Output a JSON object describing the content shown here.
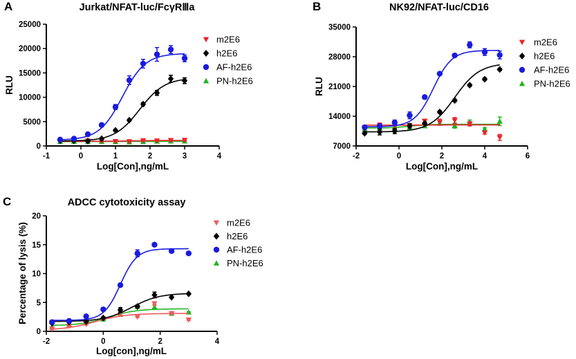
{
  "colors": {
    "m2E6": "#e8262a",
    "h2E6": "#000000",
    "AF-h2E6": "#1a1ae0",
    "PN-h2E6": "#22b422",
    "m2E6_panelC": "#f05a5a"
  },
  "chart_data": [
    {
      "panel": "A",
      "type": "scatter",
      "title": "Jurkat/NFAT-luc/FcγRⅢa",
      "xlabel": "Log[Con],ng/mL",
      "ylabel": "RLU",
      "xlim": [
        -1,
        4
      ],
      "xticks": [
        -1,
        0,
        1,
        2,
        3,
        4
      ],
      "ylim": [
        0,
        25000
      ],
      "yticks": [
        0,
        5000,
        10000,
        15000,
        20000,
        25000
      ],
      "legend": "top-right",
      "x": [
        -0.6,
        -0.2,
        0.2,
        0.6,
        1.0,
        1.4,
        1.8,
        2.2,
        2.6,
        3.0
      ],
      "series": [
        {
          "name": "m2E6",
          "marker": "triangle-down",
          "values": [
            1000,
            1000,
            1050,
            1000,
            950,
            900,
            1100,
            1050,
            1150,
            1200
          ],
          "errors": [
            100,
            100,
            100,
            100,
            100,
            100,
            150,
            100,
            150,
            150
          ],
          "fit": {
            "bottom": 950,
            "top": 1150,
            "logEC50": 1.5,
            "hill": 1
          }
        },
        {
          "name": "h2E6",
          "marker": "diamond",
          "values": [
            1100,
            1100,
            1000,
            1500,
            3200,
            5300,
            8600,
            10900,
            13800,
            13400
          ],
          "errors": [
            100,
            100,
            100,
            150,
            200,
            200,
            300,
            500,
            700,
            600
          ],
          "fit": {
            "bottom": 1000,
            "top": 14000,
            "logEC50": 1.7,
            "hill": 1.2
          }
        },
        {
          "name": "AF-h2E6",
          "marker": "circle",
          "values": [
            1300,
            1500,
            2400,
            4300,
            8000,
            13500,
            16900,
            18800,
            19800,
            18000
          ],
          "errors": [
            100,
            100,
            150,
            200,
            500,
            900,
            900,
            1400,
            800,
            700
          ],
          "fit": {
            "bottom": 1200,
            "top": 19000,
            "logEC50": 1.2,
            "hill": 1.3
          }
        },
        {
          "name": "PN-h2E6",
          "marker": "triangle-up",
          "values": [
            900,
            900,
            900,
            900,
            850,
            800,
            850,
            950,
            1000,
            1000
          ],
          "errors": [
            100,
            100,
            100,
            100,
            100,
            100,
            100,
            100,
            100,
            100
          ],
          "fit": {
            "bottom": 900,
            "top": 950,
            "logEC50": 1.5,
            "hill": 1
          }
        }
      ]
    },
    {
      "panel": "B",
      "type": "scatter",
      "title": "NK92/NFAT-luc/CD16",
      "xlabel": "Log[Con],ng/mL",
      "ylabel": "RLU",
      "xlim": [
        -2,
        6
      ],
      "xticks": [
        -2,
        0,
        2,
        4,
        6
      ],
      "ylim": [
        7000,
        35000
      ],
      "yticks": [
        7000,
        14000,
        21000,
        28000,
        35000
      ],
      "legend": "top-right",
      "x": [
        -1.6,
        -0.9,
        -0.2,
        0.5,
        1.2,
        1.9,
        2.6,
        3.3,
        4.0,
        4.7
      ],
      "series": [
        {
          "name": "m2E6",
          "marker": "triangle-down",
          "values": [
            11300,
            11800,
            11900,
            11800,
            12800,
            12600,
            13000,
            12200,
            10100,
            9000
          ],
          "errors": [
            300,
            600,
            700,
            400,
            500,
            700,
            700,
            500,
            300,
            700
          ],
          "fit": {
            "bottom": 11900,
            "top": 11950,
            "logEC50": 1.5,
            "hill": 1
          }
        },
        {
          "name": "h2E6",
          "marker": "diamond",
          "values": [
            10000,
            10300,
            10500,
            11700,
            12300,
            15000,
            17700,
            21300,
            22700,
            25000
          ],
          "errors": [
            300,
            700,
            600,
            500,
            300,
            300,
            300,
            300,
            300,
            300
          ],
          "fit": {
            "bottom": 10300,
            "top": 26500,
            "logEC50": 2.6,
            "hill": 0.75
          }
        },
        {
          "name": "AF-h2E6",
          "marker": "circle",
          "values": [
            11400,
            11700,
            12500,
            14200,
            18500,
            24000,
            28300,
            30800,
            29100,
            28400
          ],
          "errors": [
            300,
            400,
            600,
            800,
            300,
            300,
            300,
            700,
            800,
            900
          ],
          "fit": {
            "bottom": 11500,
            "top": 29500,
            "logEC50": 1.6,
            "hill": 1.0
          }
        },
        {
          "name": "PN-h2E6",
          "marker": "triangle-up",
          "values": [
            11000,
            11200,
            11300,
            11200,
            11700,
            12300,
            11800,
            12600,
            11000,
            12800
          ],
          "errors": [
            300,
            300,
            300,
            400,
            400,
            300,
            600,
            500,
            300,
            1000
          ],
          "fit": {
            "bottom": 11200,
            "top": 12100,
            "logEC50": 0.5,
            "hill": 1
          }
        }
      ]
    },
    {
      "panel": "C",
      "type": "scatter",
      "title": "ADCC  cytotoxicity assay",
      "xlabel": "Log[con],ng/mL",
      "ylabel": "Percentage of lysis (%)",
      "xlim": [
        -2,
        4
      ],
      "xticks": [
        -2,
        0,
        2,
        4
      ],
      "ylim": [
        0,
        20
      ],
      "yticks": [
        0,
        5,
        10,
        15,
        20
      ],
      "legend": "top-right",
      "x": [
        -1.8,
        -1.2,
        -0.6,
        0.0,
        0.6,
        1.2,
        1.8,
        2.4,
        3.0
      ],
      "series": [
        {
          "name": "m2E6",
          "marker": "triangle-down",
          "values": [
            0.4,
            0.9,
            1.2,
            2.2,
            3.0,
            2.5,
            4.8,
            3.1,
            2.0
          ],
          "errors": [
            0.1,
            0.1,
            0.1,
            0.1,
            0.2,
            0.1,
            0.3,
            0.1,
            0.1
          ],
          "fit": {
            "bottom": 0.2,
            "top": 3.1,
            "logEC50": -0.3,
            "hill": 0.8
          }
        },
        {
          "name": "h2E6",
          "marker": "diamond",
          "values": [
            1.4,
            1.6,
            1.7,
            2.3,
            3.7,
            4.3,
            6.3,
            5.9,
            6.5
          ],
          "errors": [
            0.1,
            0.1,
            0.1,
            0.1,
            0.4,
            0.2,
            0.5,
            0.1,
            0.1
          ],
          "fit": {
            "bottom": 1.7,
            "top": 6.6,
            "logEC50": 1.0,
            "hill": 0.9
          }
        },
        {
          "name": "AF-h2E6",
          "marker": "circle",
          "values": [
            1.6,
            1.8,
            2.6,
            3.8,
            8.0,
            13.5,
            15.0,
            13.9,
            13.5
          ],
          "errors": [
            0.1,
            0.1,
            0.1,
            0.1,
            0.1,
            0.6,
            0.1,
            0.3,
            0.1
          ],
          "fit": {
            "bottom": 1.9,
            "top": 14.3,
            "logEC50": 0.6,
            "hill": 1.5
          }
        },
        {
          "name": "PN-h2E6",
          "marker": "triangle-up",
          "values": [
            0.7,
            1.2,
            1.6,
            2.1,
            2.9,
            4.3,
            4.2,
            3.1,
            3.3
          ],
          "errors": [
            0.1,
            0.1,
            0.1,
            0.1,
            0.2,
            0.3,
            0.4,
            0.1,
            0.1
          ],
          "fit": {
            "bottom": 1.0,
            "top": 3.9,
            "logEC50": 0.2,
            "hill": 0.9
          }
        }
      ]
    }
  ]
}
